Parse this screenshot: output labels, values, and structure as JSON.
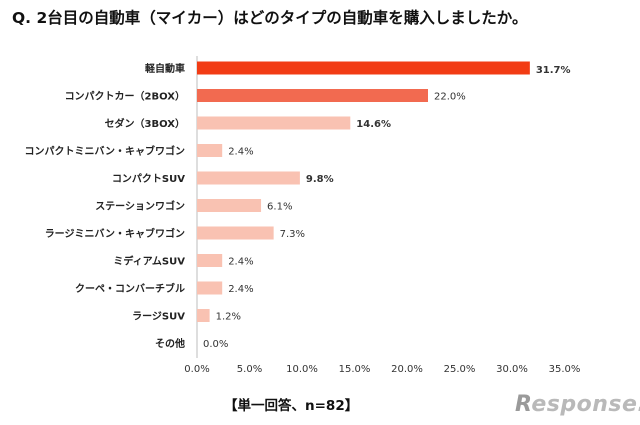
{
  "title": "Q. 2台目の自動車（マイカー）はどのタイプの自動車を購入しましたか。",
  "footer": "【単一回答、n=82】",
  "logo": "Response.",
  "chart_data": {
    "type": "bar",
    "orientation": "horizontal",
    "categories": [
      "軽自動車",
      "コンパクトカー（2BOX）",
      "セダン（3BOX）",
      "コンパクトミニバン・キャブワゴン",
      "コンパクトSUV",
      "ステーションワゴン",
      "ラージミニバン・キャブワゴン",
      "ミディアムSUV",
      "クーペ・コンバーチブル",
      "ラージSUV",
      "その他"
    ],
    "values": [
      31.7,
      22.0,
      14.6,
      2.4,
      9.8,
      6.1,
      7.3,
      2.4,
      2.4,
      1.2,
      0.0
    ],
    "value_labels": [
      "31.7%",
      "22.0%",
      "14.6%",
      "2.4%",
      "9.8%",
      "6.1%",
      "7.3%",
      "2.4%",
      "2.4%",
      "1.2%",
      "0.0%"
    ],
    "xlim": [
      0,
      35
    ],
    "x_ticks": [
      0,
      5,
      10,
      15,
      20,
      25,
      30,
      35
    ],
    "x_tick_labels": [
      "0.0%",
      "5.0%",
      "10.0%",
      "15.0%",
      "20.0%",
      "25.0%",
      "30.0%",
      "35.0%"
    ],
    "grid": false,
    "colors": {
      "rank1": "#f23c14",
      "rank2": "#f26a50",
      "other": "#f9c2b2",
      "rank1_label": "#e8381a",
      "rank2_label": "#f0603f",
      "top3_label": "#111111",
      "other_label": "#333333"
    }
  }
}
